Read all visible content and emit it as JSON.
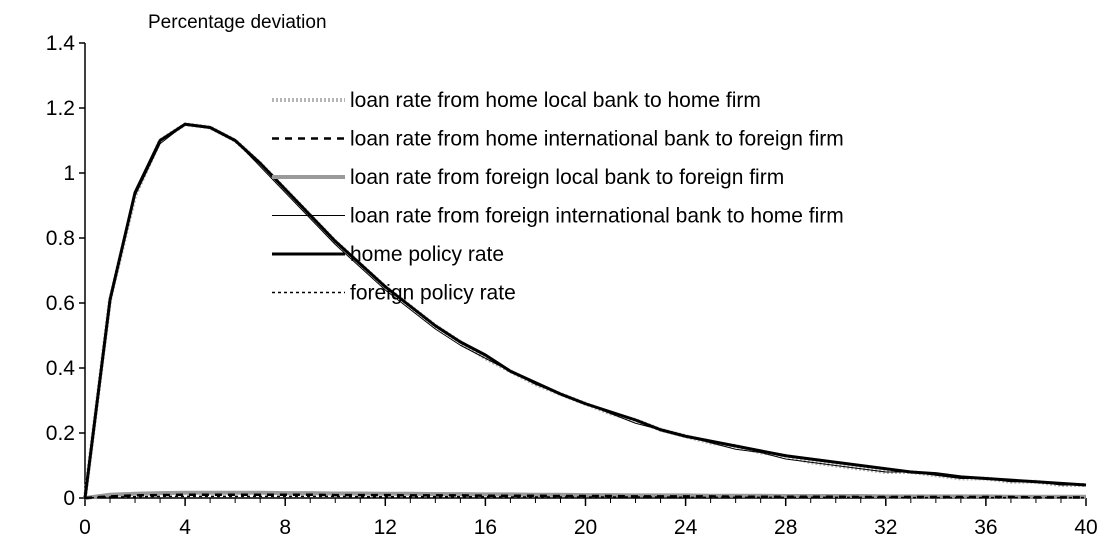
{
  "chart_data": {
    "type": "line",
    "ylabel": "Percentage deviation",
    "xlabel": "",
    "xlim": [
      0,
      40
    ],
    "ylim": [
      0,
      1.4
    ],
    "x_ticks": [
      "0",
      "4",
      "8",
      "12",
      "16",
      "20",
      "24",
      "28",
      "32",
      "36",
      "40"
    ],
    "y_ticks": [
      "0",
      "0.2",
      "0.4",
      "0.6",
      "0.8",
      "1",
      "1.2",
      "1.4"
    ],
    "grid": false,
    "legend_placement": "top-center",
    "x": [
      0,
      1,
      2,
      3,
      4,
      5,
      6,
      7,
      8,
      9,
      10,
      11,
      12,
      13,
      14,
      15,
      16,
      17,
      18,
      19,
      20,
      21,
      22,
      23,
      24,
      25,
      26,
      27,
      28,
      29,
      30,
      31,
      32,
      33,
      34,
      35,
      36,
      37,
      38,
      39,
      40
    ],
    "series": [
      {
        "name": "loan rate from home local bank to home firm",
        "style": "gray-dotted-thick",
        "color": "#b5b5b5",
        "values": [
          0,
          0.61,
          0.93,
          1.1,
          1.15,
          1.14,
          1.1,
          1.03,
          0.95,
          0.87,
          0.79,
          0.72,
          0.65,
          0.59,
          0.53,
          0.48,
          0.43,
          0.39,
          0.35,
          0.32,
          0.29,
          0.26,
          0.24,
          0.21,
          0.19,
          0.17,
          0.16,
          0.14,
          0.13,
          0.11,
          0.1,
          0.09,
          0.08,
          0.08,
          0.07,
          0.06,
          0.06,
          0.05,
          0.05,
          0.04,
          0.04
        ]
      },
      {
        "name": "loan rate from home international bank to foreign firm",
        "style": "black-dashed",
        "color": "#000000",
        "values": [
          0,
          0.005,
          0.008,
          0.009,
          0.01,
          0.01,
          0.01,
          0.01,
          0.01,
          0.01,
          0.009,
          0.009,
          0.009,
          0.008,
          0.008,
          0.008,
          0.007,
          0.007,
          0.007,
          0.006,
          0.006,
          0.006,
          0.005,
          0.005,
          0.005,
          0.005,
          0.004,
          0.004,
          0.004,
          0.004,
          0.004,
          0.003,
          0.003,
          0.003,
          0.003,
          0.003,
          0.003,
          0.003,
          0.002,
          0.002,
          0.002
        ]
      },
      {
        "name": "loan rate from foreign local bank to foreign firm",
        "style": "gray-thick",
        "color": "#9a9a9a",
        "values": [
          0,
          0.01,
          0.013,
          0.015,
          0.016,
          0.016,
          0.016,
          0.016,
          0.015,
          0.015,
          0.014,
          0.014,
          0.013,
          0.013,
          0.012,
          0.012,
          0.011,
          0.011,
          0.01,
          0.01,
          0.009,
          0.009,
          0.008,
          0.008,
          0.008,
          0.007,
          0.007,
          0.007,
          0.006,
          0.006,
          0.006,
          0.006,
          0.005,
          0.005,
          0.005,
          0.005,
          0.005,
          0.004,
          0.004,
          0.004,
          0.004
        ]
      },
      {
        "name": "loan rate from foreign international bank to home firm",
        "style": "black-thin",
        "color": "#000000",
        "values": [
          0,
          0.61,
          0.93,
          1.09,
          1.15,
          1.14,
          1.1,
          1.02,
          0.94,
          0.86,
          0.78,
          0.71,
          0.64,
          0.58,
          0.52,
          0.47,
          0.43,
          0.39,
          0.35,
          0.32,
          0.29,
          0.26,
          0.23,
          0.21,
          0.19,
          0.17,
          0.15,
          0.14,
          0.12,
          0.11,
          0.1,
          0.09,
          0.08,
          0.08,
          0.07,
          0.06,
          0.06,
          0.05,
          0.05,
          0.04,
          0.04
        ]
      },
      {
        "name": "home policy rate",
        "style": "black-thick",
        "color": "#000000",
        "values": [
          0,
          0.61,
          0.94,
          1.1,
          1.15,
          1.14,
          1.1,
          1.03,
          0.95,
          0.87,
          0.79,
          0.72,
          0.65,
          0.59,
          0.53,
          0.48,
          0.44,
          0.39,
          0.355,
          0.32,
          0.29,
          0.265,
          0.24,
          0.21,
          0.19,
          0.175,
          0.16,
          0.145,
          0.13,
          0.12,
          0.11,
          0.1,
          0.09,
          0.08,
          0.075,
          0.065,
          0.06,
          0.055,
          0.05,
          0.045,
          0.04
        ]
      },
      {
        "name": "foreign policy rate",
        "style": "black-dotted",
        "color": "#000000",
        "values": [
          0,
          0.003,
          0.004,
          0.005,
          0.005,
          0.005,
          0.005,
          0.005,
          0.005,
          0.005,
          0.005,
          0.004,
          0.004,
          0.004,
          0.004,
          0.004,
          0.004,
          0.003,
          0.003,
          0.003,
          0.003,
          0.003,
          0.003,
          0.003,
          0.002,
          0.002,
          0.002,
          0.002,
          0.002,
          0.002,
          0.002,
          0.002,
          0.002,
          0.001,
          0.001,
          0.001,
          0.001,
          0.001,
          0.001,
          0.001,
          0.001
        ]
      }
    ]
  }
}
